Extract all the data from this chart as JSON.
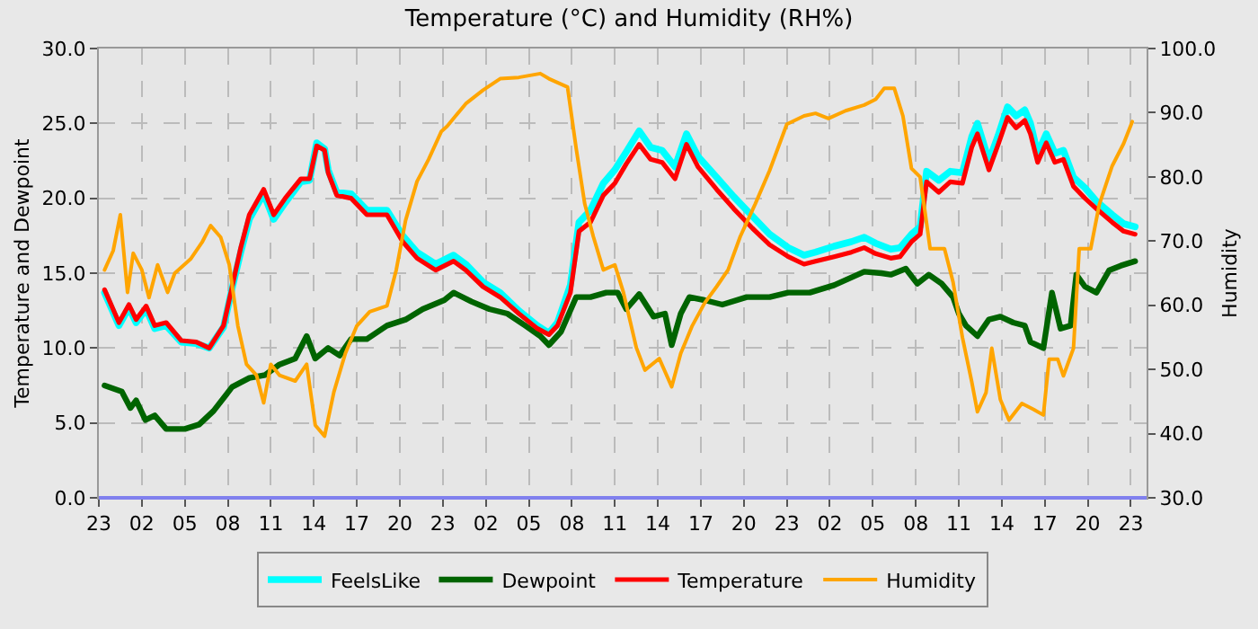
{
  "chart_data": {
    "type": "line",
    "title": "Temperature (°C) and Humidity (RH%)",
    "ylabel": "Temperature and Dewpoint",
    "y2label": "Humidity",
    "xlim": [
      "--01-01T23:00",
      "--01-05T00:06"
    ],
    "xticks": [
      {
        "value": "--01-01T23:00",
        "label": "23"
      },
      {
        "value": "--01-02T02:00",
        "label": "02"
      },
      {
        "value": "--01-02T05:00",
        "label": "05"
      },
      {
        "value": "--01-02T08:00",
        "label": "08"
      },
      {
        "value": "--01-02T11:00",
        "label": "11"
      },
      {
        "value": "--01-02T14:00",
        "label": "14"
      },
      {
        "value": "--01-02T17:00",
        "label": "17"
      },
      {
        "value": "--01-02T20:00",
        "label": "20"
      },
      {
        "value": "--01-02T23:00",
        "label": "23"
      },
      {
        "value": "--01-03T02:00",
        "label": "02"
      },
      {
        "value": "--01-03T05:00",
        "label": "05"
      },
      {
        "value": "--01-03T08:00",
        "label": "08"
      },
      {
        "value": "--01-03T11:00",
        "label": "11"
      },
      {
        "value": "--01-03T14:00",
        "label": "14"
      },
      {
        "value": "--01-03T17:00",
        "label": "17"
      },
      {
        "value": "--01-03T20:00",
        "label": "20"
      },
      {
        "value": "--01-03T23:00",
        "label": "23"
      },
      {
        "value": "--01-04T02:00",
        "label": "02"
      },
      {
        "value": "--01-04T05:00",
        "label": "05"
      },
      {
        "value": "--01-04T08:00",
        "label": "08"
      },
      {
        "value": "--01-04T11:00",
        "label": "11"
      },
      {
        "value": "--01-04T14:00",
        "label": "14"
      },
      {
        "value": "--01-04T17:00",
        "label": "17"
      },
      {
        "value": "--01-04T20:00",
        "label": "20"
      },
      {
        "value": "--01-04T23:00",
        "label": "23"
      }
    ],
    "ylim": [
      0,
      30
    ],
    "yticks": [
      {
        "value": 0,
        "label": "0.0"
      },
      {
        "value": 5,
        "label": "5.0"
      },
      {
        "value": 10,
        "label": "10.0"
      },
      {
        "value": 15,
        "label": "15.0"
      },
      {
        "value": 20,
        "label": "20.0"
      },
      {
        "value": 25,
        "label": "25.0"
      },
      {
        "value": 30,
        "label": "30.0"
      }
    ],
    "y2lim": [
      30,
      100
    ],
    "y2ticks": [
      {
        "value": 30,
        "label": "30.0"
      },
      {
        "value": 40,
        "label": "40.0"
      },
      {
        "value": 50,
        "label": "50.0"
      },
      {
        "value": 60,
        "label": "60.0"
      },
      {
        "value": 70,
        "label": "70.0"
      },
      {
        "value": 80,
        "label": "80.0"
      },
      {
        "value": 90,
        "label": "90.0"
      },
      {
        "value": 100,
        "label": "100.0"
      }
    ],
    "grid": true,
    "legend": "bottom",
    "marker": "none",
    "line_style": "solid",
    "series": [
      {
        "name": "FeelsLike",
        "color": "#00ffff",
        "x": [
          "--01-01T23:24",
          "--01-02T00:24",
          "--01-02T01:06",
          "--01-02T01:36",
          "--01-02T02:18",
          "--01-02T02:54",
          "--01-02T03:42",
          "--01-02T04:45",
          "--01-02T05:48",
          "--01-02T06:42",
          "--01-02T07:42",
          "--01-02T08:18",
          "--01-02T08:54",
          "--01-02T09:30",
          "--01-02T10:30",
          "--01-02T11:12",
          "--01-02T12:00",
          "--01-02T13:06",
          "--01-02T13:42",
          "--01-02T14:12",
          "--01-02T14:45",
          "--01-02T15:00",
          "--01-02T15:36",
          "--01-02T16:36",
          "--01-02T17:42",
          "--01-02T19:06",
          "--01-02T20:12",
          "--01-02T21:12",
          "--01-02T22:30",
          "--01-02T23:45",
          "--01-03T00:36",
          "--01-03T01:48",
          "--01-03T03:00",
          "--01-03T04:18",
          "--01-03T05:36",
          "--01-03T06:24",
          "--01-03T07:00",
          "--01-03T07:54",
          "--01-03T08:30",
          "--01-03T09:18",
          "--01-03T10:12",
          "--01-03T11:00",
          "--01-03T11:48",
          "--01-03T12:42",
          "--01-03T13:30",
          "--01-03T14:18",
          "--01-03T15:12",
          "--01-03T16:00",
          "--01-03T16:48",
          "--01-03T18:06",
          "--01-03T19:18",
          "--01-03T20:36",
          "--01-03T21:48",
          "--01-03T23:06",
          "--01-04T00:12",
          "--01-04T01:00",
          "--01-04T02:18",
          "--01-04T03:30",
          "--01-04T04:24",
          "--01-04T05:12",
          "--01-04T06:15",
          "--01-04T06:54",
          "--01-04T07:42",
          "--01-04T08:18",
          "--01-04T08:45",
          "--01-04T09:36",
          "--01-04T10:24",
          "--01-04T11:15",
          "--01-04T11:54",
          "--01-04T12:18",
          "--01-04T13:06",
          "--01-04T13:45",
          "--01-04T14:24",
          "--01-04T15:00",
          "--01-04T15:36",
          "--01-04T16:00",
          "--01-04T16:30",
          "--01-04T17:06",
          "--01-04T17:42",
          "--01-04T18:18",
          "--01-04T19:00",
          "--01-04T19:48",
          "--01-04T20:36",
          "--01-04T21:42",
          "--01-04T22:30",
          "--01-04T23:18"
        ],
        "values": [
          13.7,
          11.5,
          12.7,
          11.7,
          12.6,
          11.3,
          11.5,
          10.4,
          10.3,
          10.0,
          11.4,
          14.0,
          16.4,
          18.6,
          20.3,
          18.6,
          19.7,
          21.1,
          21.2,
          23.7,
          23.3,
          21.9,
          20.4,
          20.3,
          19.2,
          19.2,
          17.5,
          16.4,
          15.6,
          16.2,
          15.6,
          14.4,
          13.7,
          12.5,
          11.5,
          11.0,
          11.7,
          14.2,
          18.4,
          19.2,
          21.0,
          21.9,
          23.1,
          24.5,
          23.4,
          23.2,
          22.1,
          24.3,
          22.8,
          21.4,
          20.1,
          18.8,
          17.6,
          16.7,
          16.2,
          16.4,
          16.8,
          17.1,
          17.4,
          17.0,
          16.6,
          16.7,
          17.6,
          18.1,
          21.8,
          21.2,
          21.8,
          21.7,
          24.1,
          25.0,
          22.5,
          24.2,
          26.1,
          25.5,
          25.9,
          25.0,
          23.0,
          24.3,
          23.0,
          23.2,
          21.4,
          20.7,
          19.8,
          18.9,
          18.3,
          18.1
        ]
      },
      {
        "name": "Dewpoint",
        "color": "#006400",
        "x": [
          "--01-01T23:24",
          "--01-02T00:36",
          "--01-02T01:12",
          "--01-02T01:36",
          "--01-02T02:15",
          "--01-02T02:54",
          "--01-02T03:42",
          "--01-02T05:00",
          "--01-02T06:00",
          "--01-02T07:00",
          "--01-02T08:18",
          "--01-02T09:30",
          "--01-02T10:36",
          "--01-02T11:36",
          "--01-02T12:42",
          "--01-02T13:30",
          "--01-02T14:06",
          "--01-02T15:00",
          "--01-02T15:48",
          "--01-02T16:36",
          "--01-02T17:42",
          "--01-02T19:06",
          "--01-02T20:24",
          "--01-02T21:36",
          "--01-02T23:06",
          "--01-02T23:45",
          "--01-03T01:00",
          "--01-03T02:15",
          "--01-03T03:30",
          "--01-03T04:45",
          "--01-03T05:48",
          "--01-03T06:24",
          "--01-03T07:15",
          "--01-03T08:18",
          "--01-03T09:18",
          "--01-03T10:24",
          "--01-03T11:12",
          "--01-03T11:48",
          "--01-03T12:42",
          "--01-03T13:42",
          "--01-03T14:30",
          "--01-03T14:58",
          "--01-03T15:36",
          "--01-03T16:12",
          "--01-03T17:15",
          "--01-03T18:30",
          "--01-03T20:12",
          "--01-03T21:48",
          "--01-03T23:06",
          "--01-04T00:36",
          "--01-04T02:18",
          "--01-04T04:24",
          "--01-04T05:36",
          "--01-04T06:15",
          "--01-04T07:18",
          "--01-04T08:06",
          "--01-04T08:54",
          "--01-04T09:48",
          "--01-04T10:36",
          "--01-04T11:00",
          "--01-04T11:30",
          "--01-04T12:18",
          "--01-04T13:06",
          "--01-04T13:54",
          "--01-04T14:48",
          "--01-04T15:36",
          "--01-04T16:00",
          "--01-04T16:54",
          "--01-04T17:30",
          "--01-04T18:06",
          "--01-04T18:48",
          "--01-04T19:12",
          "--01-04T19:48",
          "--01-04T20:36",
          "--01-04T21:30",
          "--01-04T22:18",
          "--01-04T23:18"
        ],
        "values": [
          7.5,
          7.1,
          6.0,
          6.5,
          5.2,
          5.5,
          4.6,
          4.6,
          4.9,
          5.8,
          7.4,
          8.0,
          8.2,
          8.9,
          9.3,
          10.8,
          9.3,
          10.0,
          9.5,
          10.6,
          10.6,
          11.5,
          11.9,
          12.6,
          13.2,
          13.7,
          13.1,
          12.6,
          12.3,
          11.5,
          10.8,
          10.2,
          11.1,
          13.4,
          13.4,
          13.7,
          13.7,
          12.6,
          13.6,
          12.1,
          12.3,
          10.2,
          12.3,
          13.4,
          13.2,
          12.9,
          13.4,
          13.4,
          13.7,
          13.7,
          14.2,
          15.1,
          15.0,
          14.9,
          15.3,
          14.3,
          14.9,
          14.3,
          13.4,
          12.3,
          11.5,
          10.8,
          11.9,
          12.1,
          11.7,
          11.5,
          10.4,
          10.0,
          13.7,
          11.3,
          11.5,
          14.9,
          14.1,
          13.7,
          15.2,
          15.5,
          15.8
        ]
      },
      {
        "name": "Temperature",
        "color": "#ff0000",
        "x": [
          "--01-01T23:24",
          "--01-02T00:24",
          "--01-02T01:06",
          "--01-02T01:36",
          "--01-02T02:18",
          "--01-02T02:54",
          "--01-02T03:42",
          "--01-02T04:45",
          "--01-02T05:48",
          "--01-02T06:42",
          "--01-02T07:42",
          "--01-02T08:18",
          "--01-02T08:54",
          "--01-02T09:30",
          "--01-02T10:30",
          "--01-02T11:12",
          "--01-02T12:00",
          "--01-02T13:06",
          "--01-02T13:42",
          "--01-02T14:12",
          "--01-02T14:45",
          "--01-02T15:00",
          "--01-02T15:36",
          "--01-02T16:36",
          "--01-02T17:42",
          "--01-02T19:06",
          "--01-02T20:12",
          "--01-02T21:12",
          "--01-02T22:30",
          "--01-02T23:45",
          "--01-03T00:36",
          "--01-03T01:48",
          "--01-03T03:00",
          "--01-03T04:18",
          "--01-03T05:36",
          "--01-03T06:24",
          "--01-03T07:00",
          "--01-03T07:54",
          "--01-03T08:30",
          "--01-03T09:18",
          "--01-03T10:12",
          "--01-03T11:00",
          "--01-03T11:48",
          "--01-03T12:42",
          "--01-03T13:30",
          "--01-03T14:18",
          "--01-03T15:12",
          "--01-03T16:00",
          "--01-03T16:48",
          "--01-03T18:06",
          "--01-03T19:18",
          "--01-03T20:36",
          "--01-03T21:48",
          "--01-03T23:06",
          "--01-04T00:12",
          "--01-04T01:00",
          "--01-04T02:18",
          "--01-04T03:30",
          "--01-04T04:24",
          "--01-04T05:12",
          "--01-04T06:15",
          "--01-04T06:54",
          "--01-04T07:42",
          "--01-04T08:18",
          "--01-04T08:45",
          "--01-04T09:36",
          "--01-04T10:24",
          "--01-04T11:15",
          "--01-04T11:54",
          "--01-04T12:18",
          "--01-04T13:06",
          "--01-04T13:45",
          "--01-04T14:24",
          "--01-04T15:00",
          "--01-04T15:36",
          "--01-04T16:00",
          "--01-04T16:30",
          "--01-04T17:06",
          "--01-04T17:42",
          "--01-04T18:18",
          "--01-04T19:00",
          "--01-04T19:48",
          "--01-04T20:36",
          "--01-04T21:42",
          "--01-04T22:30",
          "--01-04T23:18"
        ],
        "values": [
          13.9,
          11.7,
          12.9,
          11.9,
          12.8,
          11.5,
          11.7,
          10.5,
          10.4,
          10.0,
          11.5,
          14.1,
          16.7,
          18.9,
          20.6,
          18.9,
          20.0,
          21.3,
          21.3,
          23.5,
          23.2,
          21.7,
          20.2,
          20.0,
          18.9,
          18.9,
          17.1,
          16.0,
          15.2,
          15.8,
          15.2,
          14.1,
          13.4,
          12.3,
          11.3,
          10.9,
          11.5,
          13.7,
          17.8,
          18.4,
          20.2,
          21.0,
          22.3,
          23.6,
          22.6,
          22.4,
          21.3,
          23.6,
          22.1,
          20.6,
          19.3,
          18.0,
          16.9,
          16.1,
          15.6,
          15.8,
          16.1,
          16.4,
          16.7,
          16.3,
          16.0,
          16.1,
          17.1,
          17.6,
          21.1,
          20.4,
          21.1,
          21.0,
          23.4,
          24.3,
          21.9,
          23.6,
          25.4,
          24.7,
          25.2,
          24.3,
          22.4,
          23.7,
          22.4,
          22.6,
          20.8,
          20.0,
          19.3,
          18.4,
          17.8,
          17.6
        ]
      },
      {
        "name": "Humidity",
        "color": "#ffa500",
        "axis": "y2",
        "x": [
          "--01-01T23:24",
          "--01-02T00:00",
          "--01-02T00:30",
          "--01-02T01:00",
          "--01-02T01:24",
          "--01-02T02:00",
          "--01-02T02:30",
          "--01-02T03:06",
          "--01-02T03:48",
          "--01-02T04:18",
          "--01-02T05:24",
          "--01-02T06:12",
          "--01-02T06:48",
          "--01-02T07:30",
          "--01-02T08:06",
          "--01-02T08:42",
          "--01-02T09:18",
          "--01-02T10:00",
          "--01-02T10:30",
          "--01-02T11:00",
          "--01-02T11:36",
          "--01-02T12:42",
          "--01-02T13:30",
          "--01-02T14:06",
          "--01-02T14:45",
          "--01-02T15:24",
          "--01-02T16:12",
          "--01-02T17:00",
          "--01-02T17:54",
          "--01-02T19:06",
          "--01-02T19:45",
          "--01-02T20:24",
          "--01-02T21:12",
          "--01-02T22:00",
          "--01-02T22:54",
          "--01-02T23:18",
          "--01-03T00:36",
          "--01-03T01:48",
          "--01-03T03:00",
          "--01-03T04:18",
          "--01-03T05:48",
          "--01-03T06:24",
          "--01-03T07:42",
          "--01-03T08:18",
          "--01-03T08:54",
          "--01-03T09:30",
          "--01-03T10:12",
          "--01-03T11:00",
          "--01-03T11:36",
          "--01-03T12:30",
          "--01-03T13:06",
          "--01-03T14:06",
          "--01-03T14:58",
          "--01-03T15:36",
          "--01-03T16:24",
          "--01-03T17:15",
          "--01-03T18:06",
          "--01-03T18:54",
          "--01-03T19:45",
          "--01-03T20:48",
          "--01-03T21:48",
          "--01-03T23:00",
          "--01-04T00:12",
          "--01-04T01:00",
          "--01-04T01:54",
          "--01-04T03:06",
          "--01-04T04:24",
          "--01-04T05:12",
          "--01-04T05:48",
          "--01-04T06:30",
          "--01-04T07:06",
          "--01-04T07:42",
          "--01-04T08:18",
          "--01-04T09:00",
          "--01-04T10:00",
          "--01-04T10:36",
          "--01-04T11:15",
          "--01-04T11:54",
          "--01-04T12:18",
          "--01-04T12:54",
          "--01-04T13:18",
          "--01-04T13:54",
          "--01-04T14:30",
          "--01-04T15:24",
          "--01-04T16:12",
          "--01-04T16:54",
          "--01-04T17:18",
          "--01-04T17:54",
          "--01-04T18:18",
          "--01-04T19:00",
          "--01-04T19:24",
          "--01-04T20:12",
          "--01-04T20:48",
          "--01-04T21:42",
          "--01-04T22:30",
          "--01-04T23:06"
        ],
        "values": [
          65.5,
          68.5,
          74.1,
          62.0,
          68.1,
          65.5,
          61.2,
          66.3,
          62.0,
          65.0,
          67.2,
          69.8,
          72.4,
          70.6,
          66.3,
          56.8,
          50.8,
          49.1,
          44.8,
          50.8,
          49.1,
          48.2,
          50.8,
          41.3,
          39.6,
          46.5,
          52.5,
          56.8,
          59.0,
          59.9,
          65.5,
          73.2,
          79.3,
          82.7,
          87.1,
          87.9,
          91.4,
          93.5,
          95.3,
          95.5,
          96.1,
          95.3,
          94.0,
          84.5,
          75.8,
          70.7,
          65.5,
          66.3,
          62.0,
          53.4,
          49.9,
          51.7,
          47.3,
          52.5,
          56.8,
          60.3,
          62.9,
          65.5,
          70.7,
          75.8,
          81.0,
          88.2,
          89.5,
          89.9,
          89.1,
          90.3,
          91.2,
          92.1,
          93.8,
          93.8,
          89.5,
          81.3,
          80.0,
          68.8,
          68.8,
          63.6,
          55.0,
          48.1,
          43.4,
          46.4,
          53.3,
          45.3,
          42.1,
          44.7,
          43.8,
          42.9,
          51.6,
          51.6,
          49.0,
          53.3,
          68.8,
          68.8,
          75.7,
          81.7,
          85.2,
          88.6
        ]
      }
    ]
  }
}
